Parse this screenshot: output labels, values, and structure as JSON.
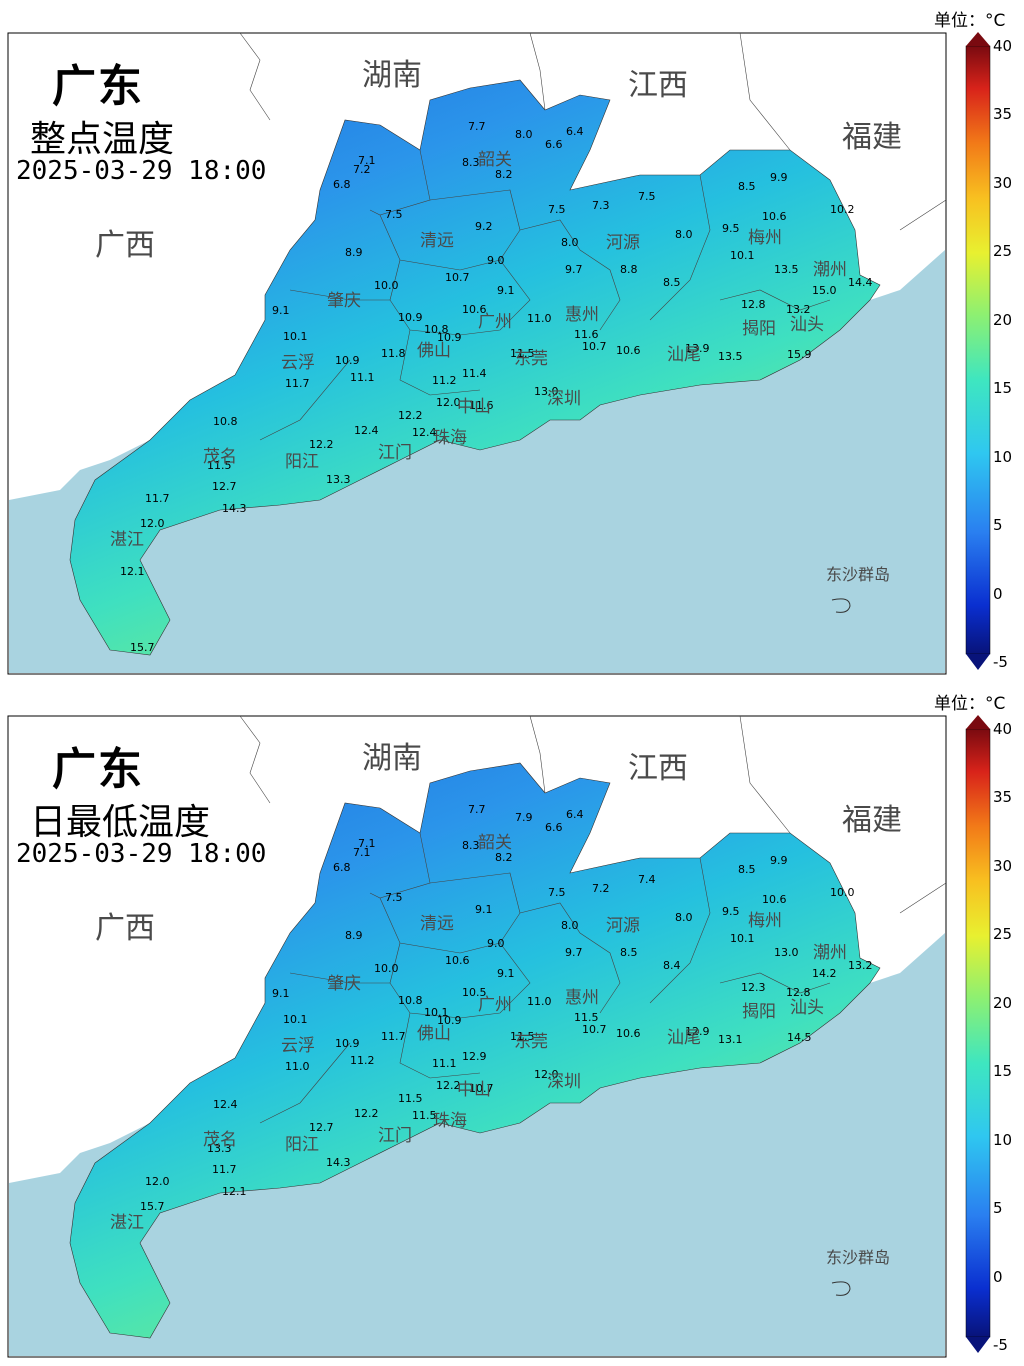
{
  "colorbar": {
    "unit_label": "单位：°C",
    "ticks": [
      "40",
      "35",
      "30",
      "25",
      "20",
      "15",
      "10",
      "5",
      "0",
      "-5"
    ]
  },
  "labels": {
    "hunan": "湖南",
    "jiangxi": "江西",
    "fujian": "福建",
    "guangxi": "广西",
    "dongsha": "东沙群岛"
  },
  "cities": [
    "韶关",
    "清远",
    "河源",
    "梅州",
    "潮州",
    "肇庆",
    "广州",
    "惠州",
    "揭阳",
    "汕头",
    "云浮",
    "佛山",
    "东莞",
    "汕尾",
    "中山",
    "深圳",
    "茂名",
    "阳江",
    "江门",
    "珠海",
    "湛江"
  ],
  "panels": [
    {
      "region": "广东",
      "product": "整点温度",
      "time": "2025-03-29 18:00",
      "stations": [
        "7.7",
        "8.0",
        "6.4",
        "6.6",
        "7.1",
        "7.2",
        "6.8",
        "8.3",
        "8.2",
        "7.5",
        "7.3",
        "7.5",
        "8.5",
        "9.9",
        "7.5",
        "9.2",
        "8.0",
        "8.0",
        "9.5",
        "10.6",
        "10.2",
        "8.9",
        "9.0",
        "8.8",
        "10.1",
        "13.5",
        "10.7",
        "9.7",
        "8.5",
        "10.0",
        "9.1",
        "15.0",
        "14.4",
        "10.6",
        "11.0",
        "12.8",
        "13.2",
        "9.1",
        "10.9",
        "10.8",
        "11.6",
        "10.1",
        "10.9",
        "10.7",
        "10.6",
        "13.9",
        "13.5",
        "15.9",
        "10.9",
        "11.8",
        "11.5",
        "11.7",
        "11.1",
        "11.2",
        "11.4",
        "13.0",
        "12.0",
        "12.2",
        "11.6",
        "10.8",
        "12.4",
        "12.4",
        "12.2",
        "11.5",
        "12.7",
        "13.3",
        "11.7",
        "14.3",
        "12.0",
        "12.1",
        "15.7"
      ]
    },
    {
      "region": "广东",
      "product": "日最低温度",
      "time": "2025-03-29 18:00",
      "stations": [
        "7.7",
        "7.9",
        "6.4",
        "6.6",
        "7.1",
        "7.1",
        "6.8",
        "8.3",
        "8.2",
        "7.5",
        "7.2",
        "7.4",
        "8.5",
        "9.9",
        "7.5",
        "9.1",
        "8.0",
        "8.0",
        "9.5",
        "10.6",
        "10.0",
        "8.9",
        "9.0",
        "8.5",
        "10.1",
        "13.0",
        "10.6",
        "9.7",
        "8.4",
        "10.0",
        "9.1",
        "14.2",
        "13.2",
        "10.5",
        "11.0",
        "12.3",
        "12.8",
        "9.1",
        "10.8",
        "10.1",
        "11.5",
        "10.1",
        "10.9",
        "10.7",
        "10.6",
        "12.9",
        "13.1",
        "14.5",
        "10.9",
        "11.7",
        "11.5",
        "11.0",
        "11.2",
        "11.1",
        "12.9",
        "12.0",
        "12.2",
        "11.5",
        "10.7",
        "12.4",
        "12.2",
        "11.5",
        "12.7",
        "13.3",
        "11.7",
        "14.3",
        "12.0",
        "12.1",
        "15.7"
      ]
    }
  ]
}
